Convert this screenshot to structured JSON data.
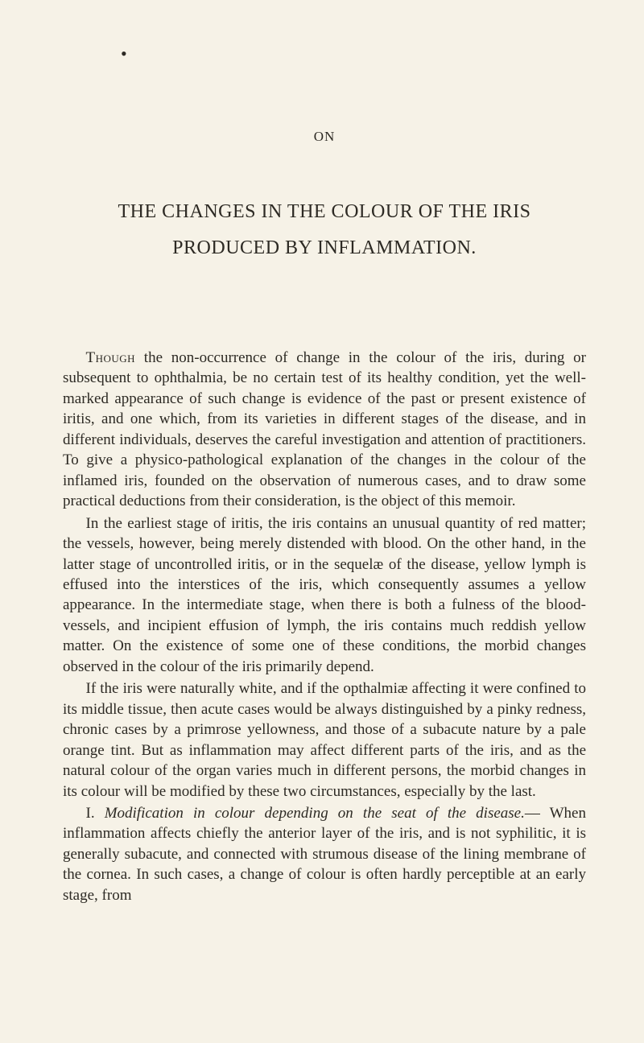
{
  "page": {
    "background_color": "#f6f2e7",
    "text_color": "#2d2a24",
    "font_family": "'Times New Roman', Georgia, serif"
  },
  "dot": "•",
  "heading_on": "ON",
  "title_line1": "THE CHANGES IN THE COLOUR OF THE IRIS",
  "title_line2": "PRODUCED BY INFLAMMATION.",
  "para1_lead": "Though",
  "para1_rest": " the non-occurrence of change in the colour of the iris, during or subsequent to ophthalmia, be no certain test of its healthy condition, yet the well-marked appearance of such change is evidence of the past or present existence of iritis, and one which, from its va­rieties in different stages of the disease, and in different individuals, deserves the careful investigation and attention of practitioners. To give a physico-pathological explanation of the changes in the colour of the inflamed iris, founded on the observation of numerous cases, and to draw some practical deductions from their consideration, is the object of this memoir.",
  "para2": "In the earliest stage of iritis, the iris contains an unusual quantity of red matter; the vessels, however, being merely distended with blood. On the other hand, in the latter stage of uncontrolled iritis, or in the sequelæ of the disease, yellow lymph is effused into the in­terstices of the iris, which consequently assumes a yellow appearance. In the intermediate stage, when there is both a fulness of the blood-vessels, and incipient effusion of lymph, the iris contains much red­dish yellow matter. On the existence of some one of these condi­tions, the morbid changes observed in the colour of the iris primarily depend.",
  "para3": "If the iris were naturally white, and if the opthalmiæ affecting it were confined to its middle tissue, then acute cases would be always distinguished by a pinky redness, chronic cases by a primrose yellow­ness, and those of a subacute nature by a pale orange tint. But as inflammation may affect different parts of the iris, and as the natural colour of the organ varies much in different persons, the morbid changes in its colour will be modified by these two circumstances, es­pecially by the last.",
  "para4_num": "I. ",
  "para4_italic": "Modification in colour depending on the seat of the disease.",
  "para4_rest": "— When inflammation affects chiefly the anterior layer of the iris, and is not syphilitic, it is generally subacute, and connected with stru­mous disease of the lining membrane of the cornea. In such cases, a change of colour is often hardly perceptible at an early stage, from"
}
